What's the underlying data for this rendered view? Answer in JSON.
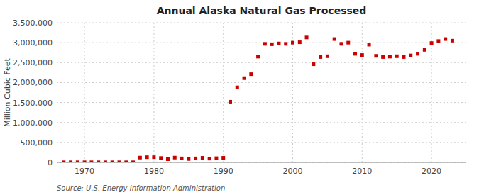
{
  "chart_data": {
    "type": "scatter",
    "title": "Annual Alaska Natural Gas Processed",
    "ylabel": "Million Cubic Feet",
    "annotation": "Source: U.S. Energy Information Administration",
    "color": "#cc0000",
    "marker": "square",
    "grid": true,
    "xlim": [
      1966,
      2025
    ],
    "xticks": [
      1970,
      1980,
      1990,
      2000,
      2010,
      2020
    ],
    "ylim": [
      0,
      3500000
    ],
    "yticks": [
      0,
      {
        "value": 500000,
        "label": "500,000"
      },
      {
        "value": 1000000,
        "label": "1,000,000"
      },
      {
        "value": 1500000,
        "label": "1,500,000"
      },
      {
        "value": 2000000,
        "label": "2,000,000"
      },
      {
        "value": 2500000,
        "label": "2,500,000"
      },
      {
        "value": 3000000,
        "label": "3,000,000"
      },
      {
        "value": 3500000,
        "label": "3,500,000"
      }
    ],
    "x": [
      1967,
      1968,
      1969,
      1970,
      1971,
      1972,
      1973,
      1974,
      1975,
      1976,
      1977,
      1978,
      1979,
      1980,
      1981,
      1982,
      1983,
      1984,
      1985,
      1986,
      1987,
      1988,
      1989,
      1990,
      1991,
      1992,
      1993,
      1994,
      1995,
      1996,
      1997,
      1998,
      1999,
      2000,
      2001,
      2002,
      2003,
      2004,
      2005,
      2006,
      2007,
      2008,
      2009,
      2010,
      2011,
      2012,
      2013,
      2014,
      2015,
      2016,
      2017,
      2018,
      2019,
      2020,
      2021,
      2022,
      2023
    ],
    "values": [
      3000,
      3000,
      3000,
      3000,
      3000,
      3000,
      3000,
      3000,
      3000,
      3000,
      3000,
      120000,
      130000,
      130000,
      110000,
      80000,
      120000,
      100000,
      85000,
      100000,
      115000,
      95000,
      105000,
      115000,
      1520000,
      1880000,
      2110000,
      2210000,
      2650000,
      2970000,
      2960000,
      2980000,
      2970000,
      3000000,
      3010000,
      3130000,
      2460000,
      2640000,
      2660000,
      3090000,
      2970000,
      3000000,
      2720000,
      2690000,
      2950000,
      2670000,
      2640000,
      2650000,
      2660000,
      2640000,
      2680000,
      2720000,
      2820000,
      2990000,
      3040000,
      3090000,
      3050000
    ]
  }
}
